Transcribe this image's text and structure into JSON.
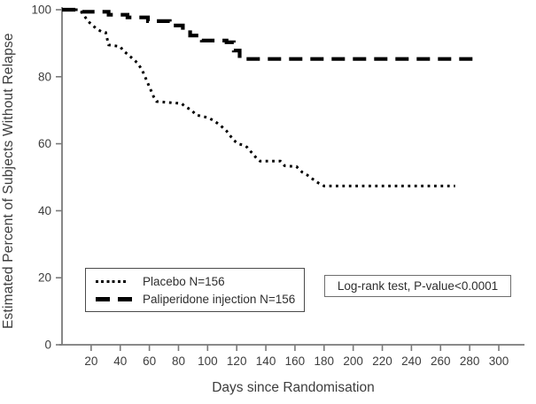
{
  "figure": {
    "background": "#ffffff",
    "axis_color": "#7a7a7a",
    "text_color": "#3d3d3d",
    "curve_color": "#000000"
  },
  "legend": {
    "items": [
      {
        "label": "Placebo N=156",
        "sample": "dotted-line"
      },
      {
        "label": "Paliperidone injection N=156",
        "sample": "dashed-line"
      }
    ]
  },
  "annotation_box": {
    "text": "Log-rank test, P-value<0.0001"
  },
  "chart_data": {
    "type": "line",
    "subtype": "kaplan-meier-survival",
    "title": "",
    "xlabel": "Days since Randomisation",
    "ylabel": "Estimated Percent of Subjects Without Relapse",
    "xlim": [
      0,
      318
    ],
    "ylim": [
      0,
      100
    ],
    "xticks": [
      20,
      40,
      60,
      80,
      100,
      120,
      140,
      160,
      180,
      200,
      220,
      240,
      260,
      280,
      300
    ],
    "yticks": [
      0,
      20,
      40,
      60,
      80,
      100
    ],
    "grid": false,
    "legend_position": "lower-left-box",
    "annotation": "Log-rank test, P-value<0.0001",
    "series": [
      {
        "name": "Placebo N=156",
        "line_style": "dotted",
        "color": "#000000",
        "step": false,
        "x": [
          0,
          12,
          14,
          18,
          24,
          27,
          30,
          32,
          40,
          42,
          47,
          52,
          55,
          57,
          60,
          63,
          65,
          82,
          85,
          89,
          92,
          100,
          104,
          109,
          113,
          118,
          121,
          125,
          127,
          131,
          134,
          136,
          150,
          153,
          161,
          165,
          168,
          172,
          176,
          180,
          270
        ],
        "y": [
          100,
          100,
          99,
          96.5,
          94.2,
          93.5,
          93.2,
          89.5,
          89,
          87.8,
          86,
          84,
          82,
          80,
          77,
          74,
          72.6,
          72,
          71,
          70,
          68.6,
          67.8,
          67,
          65.4,
          63.8,
          61,
          60,
          59.5,
          59,
          57,
          55.5,
          54.8,
          54.8,
          53.4,
          53.2,
          51.5,
          50.8,
          49.5,
          48.3,
          47.4,
          47.4
        ]
      },
      {
        "name": "Paliperidone injection N=156",
        "line_style": "dashed",
        "color": "#000000",
        "step": true,
        "x": [
          0,
          14,
          32,
          45,
          59,
          74,
          83,
          88,
          96,
          113,
          118,
          122,
          285
        ],
        "y": [
          100,
          99.4,
          98.5,
          97.7,
          96.6,
          95.3,
          94.0,
          92.3,
          90.8,
          90.3,
          87.8,
          85.3,
          85.3
        ]
      }
    ]
  }
}
